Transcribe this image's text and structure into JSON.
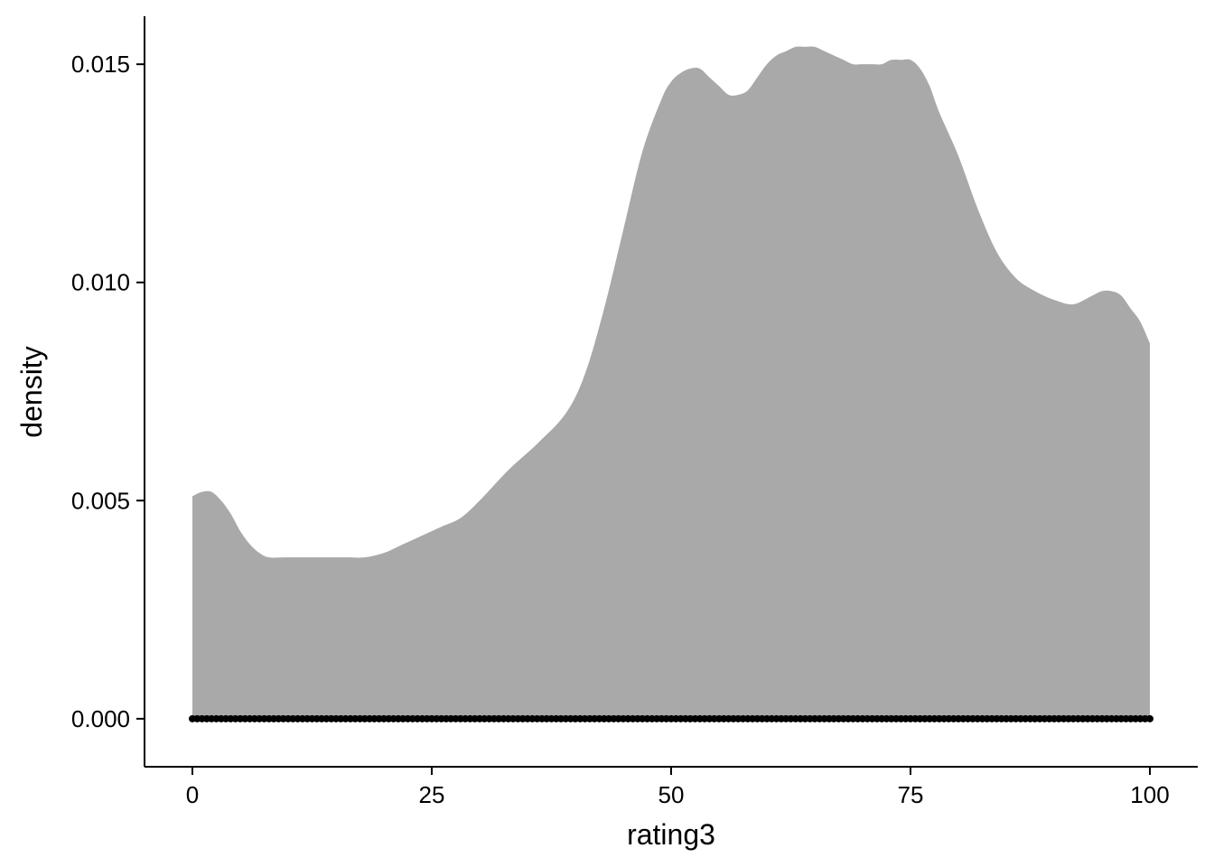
{
  "chart_data": {
    "type": "area",
    "xlabel": "rating3",
    "ylabel": "density",
    "xlim": [
      -5,
      105
    ],
    "ylim": [
      -0.0011,
      0.0161
    ],
    "xticks": [
      0,
      25,
      50,
      75,
      100
    ],
    "xtick_labels": [
      "0",
      "25",
      "50",
      "75",
      "100"
    ],
    "yticks": [
      0,
      0.005,
      0.01,
      0.015
    ],
    "ytick_labels": [
      "0.000",
      "0.005",
      "0.010",
      "0.015"
    ],
    "grid": false,
    "fill_color": "#a9a9a9",
    "point_color": "#000000",
    "series": [
      {
        "x": [
          0,
          1,
          2,
          3,
          4,
          5,
          6,
          7,
          8,
          10,
          13,
          16,
          18,
          20,
          22,
          24,
          26,
          28,
          30,
          33,
          36,
          39,
          41,
          43,
          45,
          47,
          49,
          50,
          51,
          52,
          53,
          54,
          55,
          56,
          57,
          58,
          59,
          60,
          61,
          62,
          63,
          64,
          65,
          66,
          67,
          68,
          69,
          70,
          71,
          72,
          73,
          74,
          75,
          76,
          77,
          78,
          80,
          82,
          84,
          86,
          88,
          90,
          92,
          94,
          95,
          96,
          97,
          98,
          99,
          100
        ],
        "y": [
          0.0051,
          0.0052,
          0.0052,
          0.005,
          0.0047,
          0.0043,
          0.004,
          0.0038,
          0.0037,
          0.0037,
          0.0037,
          0.0037,
          0.0037,
          0.0038,
          0.004,
          0.0042,
          0.0044,
          0.0046,
          0.005,
          0.0057,
          0.0063,
          0.007,
          0.0079,
          0.0094,
          0.0112,
          0.013,
          0.0142,
          0.0146,
          0.0148,
          0.0149,
          0.0149,
          0.0147,
          0.0145,
          0.0143,
          0.0143,
          0.0144,
          0.0147,
          0.015,
          0.0152,
          0.0153,
          0.0154,
          0.0154,
          0.0154,
          0.0153,
          0.0152,
          0.0151,
          0.015,
          0.015,
          0.015,
          0.015,
          0.0151,
          0.0151,
          0.0151,
          0.0149,
          0.0145,
          0.0139,
          0.0129,
          0.0117,
          0.0107,
          0.0101,
          0.0098,
          0.0096,
          0.0095,
          0.0097,
          0.0098,
          0.0098,
          0.0097,
          0.0094,
          0.0091,
          0.0086
        ]
      }
    ],
    "points": {
      "y": 0,
      "x_start": 0,
      "x_end": 100,
      "step": 0.5
    }
  }
}
